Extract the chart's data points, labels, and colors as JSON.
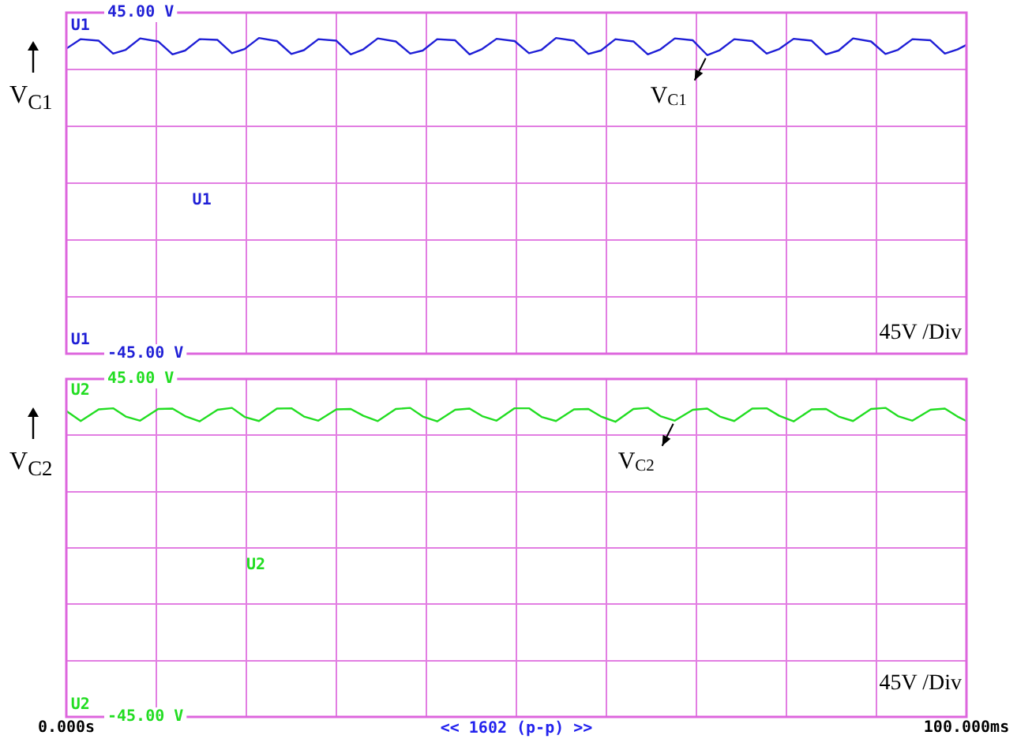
{
  "chart_data": [
    {
      "type": "line",
      "ylabel": "V$_{C1}$",
      "x": [
        0,
        1.6,
        3.6,
        5.2,
        6.6,
        8.2,
        10.2,
        11.8,
        13.2,
        14.8,
        16.8,
        18.4,
        19.8,
        21.4,
        23.4,
        25,
        26.4,
        28,
        30,
        31.6,
        33,
        34.6,
        36.6,
        38.2,
        39.6,
        41.2,
        43.2,
        44.8,
        46.2,
        47.8,
        49.8,
        51.4,
        52.8,
        54.4,
        56.4,
        58,
        59.4,
        61,
        63,
        64.6,
        66,
        67.6,
        69.6,
        71.2,
        72.6,
        74.2,
        76.2,
        77.8,
        79.2,
        80.8,
        82.8,
        84.4,
        85.8,
        87.4,
        89.4,
        91,
        92.4,
        94,
        96,
        97.6,
        99,
        100
      ],
      "series": [
        {
          "color": "#1f1fd6",
          "values": [
            35.5,
            38,
            37.6,
            34.2,
            35.2,
            38.2,
            37.4,
            34,
            35,
            38,
            37.8,
            34.3,
            35.4,
            38.3,
            37.5,
            34.1,
            35.1,
            38,
            37.6,
            34,
            35.3,
            38.2,
            37.4,
            34.2,
            35,
            38,
            37.7,
            34,
            35.4,
            38.1,
            37.5,
            34.3,
            35.2,
            38.3,
            37.6,
            34.1,
            35,
            38,
            37.4,
            34,
            35.3,
            38.2,
            37.7,
            33.8,
            35.1,
            38,
            37.5,
            34.2,
            35.4,
            38.1,
            37.6,
            34,
            35,
            38.2,
            37.4,
            34.1,
            35.2,
            38,
            37.7,
            34.2,
            35.3,
            36.5
          ]
        }
      ],
      "xlim": [
        0,
        100
      ],
      "xticks": [
        {
          "value": 0,
          "label": null
        },
        {
          "value": 10,
          "label": null
        },
        {
          "value": 20,
          "label": null
        },
        {
          "value": 30,
          "label": null
        },
        {
          "value": 40,
          "label": null
        },
        {
          "value": 50,
          "label": null
        },
        {
          "value": 60,
          "label": null
        },
        {
          "value": 70,
          "label": null
        },
        {
          "value": 80,
          "label": null
        },
        {
          "value": 90,
          "label": null
        },
        {
          "value": 100,
          "label": null
        }
      ],
      "ylim": [
        -45,
        45
      ],
      "yticks": [
        {
          "value": -45,
          "label": "-45.00 V"
        },
        {
          "value": -30,
          "label": null
        },
        {
          "value": -15,
          "label": null
        },
        {
          "value": 0,
          "label": null
        },
        {
          "value": 15,
          "label": null
        },
        {
          "value": 30,
          "label": null
        },
        {
          "value": 45,
          "label": "45.00 V"
        }
      ],
      "tick_labels": "y",
      "grid": true,
      "line_style": "solid",
      "marker": "none",
      "annotations": [
        "U1",
        "U1",
        "U1",
        {
          "text": "V$_{C1}$",
          "x": 71.2,
          "y": 33.8
        },
        "45V /Div"
      ]
    },
    {
      "type": "line",
      "ylabel": "V$_{C2}$",
      "x": [
        0,
        1.6,
        3.6,
        5.2,
        6.6,
        8.2,
        10.2,
        11.8,
        13.2,
        14.8,
        16.8,
        18.4,
        19.8,
        21.4,
        23.4,
        25,
        26.4,
        28,
        30,
        31.6,
        33,
        34.6,
        36.6,
        38.2,
        39.6,
        41.2,
        43.2,
        44.8,
        46.2,
        47.8,
        49.8,
        51.4,
        52.8,
        54.4,
        56.4,
        58,
        59.4,
        61,
        63,
        64.6,
        66,
        67.6,
        69.6,
        71.2,
        72.6,
        74.2,
        76.2,
        77.8,
        79.2,
        80.8,
        82.8,
        84.4,
        85.8,
        87.4,
        89.4,
        91,
        92.4,
        94,
        96,
        97.6,
        99,
        100
      ],
      "series": [
        {
          "color": "#22dd22",
          "values": [
            36.5,
            33.8,
            36.9,
            37.2,
            35,
            33.9,
            37,
            37.1,
            35.1,
            33.7,
            36.8,
            37.3,
            34.9,
            33.8,
            37.1,
            37.2,
            35,
            33.9,
            36.9,
            37,
            35.2,
            33.8,
            37,
            37.3,
            35,
            33.7,
            36.8,
            37.1,
            35.1,
            33.9,
            37.2,
            37.2,
            34.9,
            33.8,
            36.9,
            37,
            35,
            33.6,
            37,
            37.3,
            35.1,
            33.9,
            36.8,
            37.1,
            35,
            33.8,
            37.1,
            37.2,
            35.2,
            33.7,
            36.9,
            37,
            35,
            33.8,
            37,
            37.3,
            35.1,
            33.9,
            36.8,
            37.1,
            35,
            33.8
          ]
        }
      ],
      "xlim": [
        0,
        100
      ],
      "xticks": [
        {
          "value": 0,
          "label": "0.000s"
        },
        {
          "value": 10,
          "label": null
        },
        {
          "value": 20,
          "label": null
        },
        {
          "value": 30,
          "label": null
        },
        {
          "value": 40,
          "label": null
        },
        {
          "value": 50,
          "label": null
        },
        {
          "value": 60,
          "label": null
        },
        {
          "value": 70,
          "label": null
        },
        {
          "value": 80,
          "label": null
        },
        {
          "value": 90,
          "label": null
        },
        {
          "value": 100,
          "label": "100.000ms"
        }
      ],
      "ylim": [
        -45,
        45
      ],
      "yticks": [
        {
          "value": -45,
          "label": "-45.00 V"
        },
        {
          "value": -30,
          "label": null
        },
        {
          "value": -15,
          "label": null
        },
        {
          "value": 0,
          "label": null
        },
        {
          "value": 15,
          "label": null
        },
        {
          "value": 30,
          "label": null
        },
        {
          "value": 45,
          "label": "45.00 V"
        }
      ],
      "grid": true,
      "line_style": "solid",
      "marker": "none",
      "annotations": [
        "U2",
        "U2",
        "U2",
        {
          "text": "V$_{C2}$",
          "x": 67.6,
          "y": 33.9
        },
        "45V /Div",
        "<< 1602 (p-p) >>"
      ]
    }
  ]
}
